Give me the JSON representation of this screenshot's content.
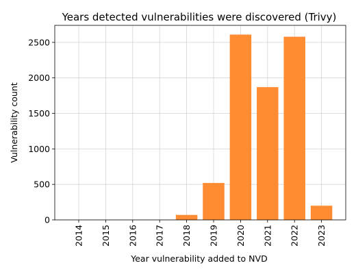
{
  "chart_data": {
    "type": "bar",
    "title": "Years detected vulnerabilities were discovered (Trivy)",
    "xlabel": "Year vulnerability added to NVD",
    "ylabel": "Vulnerability count",
    "categories": [
      "2014",
      "2015",
      "2016",
      "2017",
      "2018",
      "2019",
      "2020",
      "2021",
      "2022",
      "2023"
    ],
    "values": [
      0,
      0,
      0,
      0,
      70,
      520,
      2610,
      1870,
      2580,
      200
    ],
    "ylim": [
      0,
      2740
    ],
    "yticks": [
      0,
      500,
      1000,
      1500,
      2000,
      2500
    ],
    "grid": true,
    "bar_color": "#ff8c33"
  }
}
